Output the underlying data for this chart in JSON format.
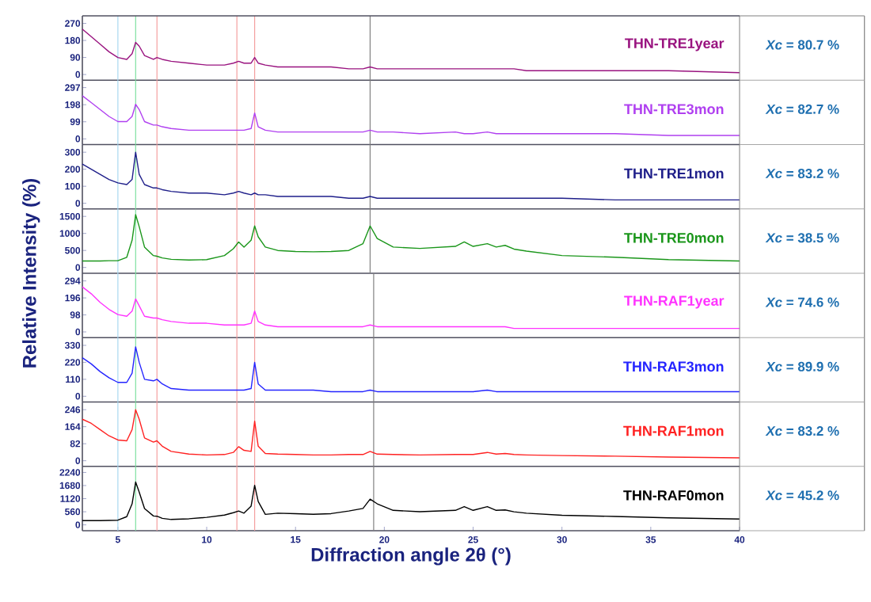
{
  "chart_data": [
    {
      "type": "line",
      "x": [
        3,
        3.5,
        4,
        4.5,
        5,
        5.5,
        5.8,
        6.0,
        6.2,
        6.5,
        7.0,
        7.2,
        7.5,
        8,
        9,
        10,
        11,
        11.5,
        11.8,
        12.1,
        12.5,
        12.7,
        12.9,
        13.3,
        14,
        15,
        16,
        17,
        18,
        18.8,
        19.2,
        19.6,
        20.5,
        22,
        24,
        24.5,
        25,
        25.8,
        26.3,
        26.8,
        27.3,
        28,
        30,
        33,
        36,
        40
      ],
      "xlim": [
        3,
        40
      ],
      "ylim": [
        -30,
        310
      ],
      "yticks": [
        0,
        90,
        180,
        270
      ],
      "tick_labels": "y",
      "series": [
        {
          "name": "THN-TRE1year",
          "color": "#99137f",
          "values": [
            240,
            200,
            160,
            120,
            90,
            80,
            110,
            170,
            150,
            100,
            80,
            90,
            80,
            70,
            60,
            50,
            50,
            60,
            70,
            60,
            60,
            90,
            60,
            50,
            40,
            40,
            40,
            40,
            30,
            30,
            40,
            30,
            30,
            30,
            30,
            30,
            30,
            30,
            30,
            30,
            30,
            20,
            20,
            20,
            20,
            10
          ]
        }
      ],
      "ref_lines": [
        {
          "axis": "x",
          "value": 5,
          "color": "#a8d8f0"
        },
        {
          "axis": "x",
          "value": 6,
          "color": "#7ee0a0"
        },
        {
          "axis": "x",
          "value": 7.2,
          "color": "#f4a0a0"
        },
        {
          "axis": "x",
          "value": 11.7,
          "color": "#f4a0a0"
        },
        {
          "axis": "x",
          "value": 12.7,
          "color": "#f4a0a0"
        },
        {
          "axis": "x",
          "value": 19.2,
          "color": "#808080"
        }
      ],
      "annotations": [
        "*Xc* = 80.7 %"
      ]
    },
    {
      "type": "line",
      "x": [
        3,
        3.5,
        4,
        4.5,
        5,
        5.5,
        5.8,
        6.0,
        6.2,
        6.5,
        7.0,
        7.2,
        7.5,
        8,
        9,
        10,
        11,
        11.5,
        11.8,
        12.1,
        12.5,
        12.7,
        12.9,
        13.3,
        14,
        15,
        16,
        17,
        18,
        18.8,
        19.2,
        19.6,
        20.5,
        22,
        24,
        24.5,
        25,
        25.8,
        26.3,
        26.8,
        27.3,
        28,
        30,
        33,
        36,
        40
      ],
      "xlim": [
        3,
        40
      ],
      "ylim": [
        -33,
        340
      ],
      "yticks": [
        0,
        99,
        198,
        297
      ],
      "tick_labels": "y",
      "series": [
        {
          "name": "THN-TRE3mon",
          "color": "#b040f0",
          "values": [
            250,
            210,
            170,
            130,
            100,
            100,
            130,
            200,
            170,
            100,
            80,
            80,
            70,
            60,
            50,
            50,
            50,
            50,
            50,
            50,
            60,
            150,
            70,
            50,
            40,
            40,
            40,
            40,
            40,
            40,
            50,
            40,
            40,
            30,
            40,
            30,
            30,
            40,
            30,
            30,
            30,
            30,
            30,
            30,
            20,
            20
          ]
        }
      ],
      "ref_lines": [
        {
          "axis": "x",
          "value": 5,
          "color": "#a8d8f0"
        },
        {
          "axis": "x",
          "value": 6,
          "color": "#7ee0a0"
        },
        {
          "axis": "x",
          "value": 7.2,
          "color": "#f4a0a0"
        },
        {
          "axis": "x",
          "value": 11.7,
          "color": "#f4a0a0"
        },
        {
          "axis": "x",
          "value": 12.7,
          "color": "#f4a0a0"
        },
        {
          "axis": "x",
          "value": 19.2,
          "color": "#808080"
        }
      ],
      "annotations": [
        "*Xc* = 82.7 %"
      ]
    },
    {
      "type": "line",
      "x": [
        3,
        3.5,
        4,
        4.5,
        5,
        5.5,
        5.8,
        6.0,
        6.2,
        6.5,
        7.0,
        7.2,
        7.5,
        8,
        9,
        10,
        11,
        11.5,
        11.8,
        12.1,
        12.5,
        12.7,
        12.9,
        13.3,
        14,
        15,
        16,
        17,
        18,
        18.8,
        19.2,
        19.6,
        20.5,
        22,
        24,
        24.5,
        25,
        25.8,
        26.3,
        26.8,
        27.3,
        28,
        30,
        33,
        36,
        40
      ],
      "xlim": [
        3,
        40
      ],
      "ylim": [
        -33,
        345
      ],
      "yticks": [
        0,
        100,
        200,
        300
      ],
      "tick_labels": "y",
      "series": [
        {
          "name": "THN-TRE1mon",
          "color": "#1f1f8a",
          "values": [
            230,
            200,
            170,
            140,
            120,
            110,
            140,
            300,
            170,
            110,
            90,
            90,
            80,
            70,
            60,
            60,
            50,
            60,
            70,
            60,
            50,
            60,
            50,
            50,
            40,
            40,
            40,
            40,
            30,
            30,
            40,
            30,
            30,
            30,
            30,
            30,
            30,
            30,
            30,
            30,
            30,
            30,
            30,
            20,
            20,
            20
          ]
        }
      ],
      "ref_lines": [
        {
          "axis": "x",
          "value": 5,
          "color": "#a8d8f0"
        },
        {
          "axis": "x",
          "value": 6,
          "color": "#7ee0a0"
        },
        {
          "axis": "x",
          "value": 7.2,
          "color": "#f4a0a0"
        },
        {
          "axis": "x",
          "value": 11.7,
          "color": "#f4a0a0"
        },
        {
          "axis": "x",
          "value": 12.7,
          "color": "#f4a0a0"
        },
        {
          "axis": "x",
          "value": 19.2,
          "color": "#808080"
        }
      ],
      "annotations": [
        "*Xc* = 83.2 %"
      ]
    },
    {
      "type": "line",
      "x": [
        3,
        3.5,
        4,
        4.5,
        5,
        5.5,
        5.8,
        6.0,
        6.2,
        6.5,
        7.0,
        7.2,
        7.5,
        8,
        9,
        10,
        11,
        11.5,
        11.8,
        12.1,
        12.5,
        12.7,
        12.9,
        13.3,
        14,
        15,
        16,
        17,
        18,
        18.8,
        19.2,
        19.6,
        20.5,
        22,
        24,
        24.5,
        25,
        25.8,
        26.3,
        26.8,
        27.3,
        28,
        30,
        33,
        36,
        40
      ],
      "xlim": [
        3,
        40
      ],
      "ylim": [
        -170,
        1720
      ],
      "yticks": [
        0,
        500,
        1000,
        1500
      ],
      "tick_labels": "y",
      "series": [
        {
          "name": "THN-TRE0mon",
          "color": "#1a961a",
          "values": [
            190,
            190,
            190,
            200,
            200,
            300,
            800,
            1550,
            1200,
            600,
            350,
            330,
            280,
            240,
            220,
            230,
            350,
            550,
            750,
            600,
            800,
            1220,
            900,
            600,
            500,
            470,
            460,
            470,
            500,
            700,
            1220,
            850,
            600,
            560,
            620,
            750,
            620,
            700,
            600,
            650,
            540,
            480,
            350,
            300,
            230,
            190
          ]
        }
      ],
      "ref_lines": [
        {
          "axis": "x",
          "value": 5,
          "color": "#a8d8f0"
        },
        {
          "axis": "x",
          "value": 6,
          "color": "#7ee0a0"
        },
        {
          "axis": "x",
          "value": 7.2,
          "color": "#f4a0a0"
        },
        {
          "axis": "x",
          "value": 11.7,
          "color": "#f4a0a0"
        },
        {
          "axis": "x",
          "value": 12.7,
          "color": "#f4a0a0"
        },
        {
          "axis": "x",
          "value": 19.2,
          "color": "#808080"
        }
      ],
      "annotations": [
        "*Xc* = 38.5 %"
      ]
    },
    {
      "type": "line",
      "x": [
        3,
        3.5,
        4,
        4.5,
        5,
        5.5,
        5.8,
        6.0,
        6.2,
        6.5,
        7.0,
        7.2,
        7.5,
        8,
        9,
        10,
        11,
        11.5,
        11.8,
        12.1,
        12.5,
        12.7,
        12.9,
        13.3,
        14,
        15,
        16,
        17,
        18,
        18.8,
        19.2,
        19.6,
        20.5,
        22,
        24,
        24.5,
        25,
        25.8,
        26.3,
        26.8,
        27.3,
        28,
        30,
        33,
        36,
        40
      ],
      "xlim": [
        3,
        40
      ],
      "ylim": [
        -33,
        338
      ],
      "yticks": [
        0,
        98,
        196,
        294
      ],
      "tick_labels": "y",
      "series": [
        {
          "name": "THN-RAF1year",
          "color": "#ff33ff",
          "values": [
            260,
            220,
            170,
            130,
            100,
            90,
            120,
            190,
            150,
            90,
            80,
            80,
            70,
            60,
            50,
            50,
            40,
            40,
            40,
            40,
            50,
            120,
            60,
            40,
            30,
            30,
            30,
            30,
            30,
            30,
            40,
            30,
            30,
            30,
            30,
            30,
            30,
            30,
            30,
            30,
            20,
            20,
            20,
            20,
            20,
            20
          ]
        }
      ],
      "ref_lines": [
        {
          "axis": "x",
          "value": 5,
          "color": "#a8d8f0"
        },
        {
          "axis": "x",
          "value": 6,
          "color": "#7ee0a0"
        },
        {
          "axis": "x",
          "value": 7.2,
          "color": "#f4a0a0"
        },
        {
          "axis": "x",
          "value": 11.7,
          "color": "#f4a0a0"
        },
        {
          "axis": "x",
          "value": 12.7,
          "color": "#f4a0a0"
        },
        {
          "axis": "x",
          "value": 19.4,
          "color": "#808080"
        }
      ],
      "annotations": [
        "*Xc* = 74.6 %"
      ]
    },
    {
      "type": "line",
      "x": [
        3,
        3.5,
        4,
        4.5,
        5,
        5.5,
        5.8,
        6.0,
        6.2,
        6.5,
        7.0,
        7.2,
        7.5,
        8,
        9,
        10,
        11,
        11.5,
        11.8,
        12.1,
        12.5,
        12.7,
        12.9,
        13.3,
        14,
        15,
        16,
        17,
        18,
        18.8,
        19.2,
        19.6,
        20.5,
        22,
        24,
        24.5,
        25,
        25.8,
        26.3,
        26.8,
        27.3,
        28,
        30,
        33,
        36,
        40
      ],
      "xlim": [
        3,
        40
      ],
      "ylim": [
        -37,
        380
      ],
      "yticks": [
        0,
        110,
        220,
        330
      ],
      "tick_labels": "y",
      "series": [
        {
          "name": "THN-RAF3mon",
          "color": "#2424ff",
          "values": [
            250,
            210,
            160,
            120,
            90,
            90,
            150,
            320,
            220,
            110,
            100,
            110,
            80,
            50,
            40,
            40,
            40,
            40,
            40,
            40,
            50,
            220,
            80,
            40,
            40,
            40,
            40,
            30,
            30,
            30,
            40,
            30,
            30,
            30,
            30,
            30,
            30,
            40,
            30,
            30,
            30,
            30,
            30,
            30,
            30,
            30
          ]
        }
      ],
      "ref_lines": [
        {
          "axis": "x",
          "value": 5,
          "color": "#a8d8f0"
        },
        {
          "axis": "x",
          "value": 6,
          "color": "#7ee0a0"
        },
        {
          "axis": "x",
          "value": 7.2,
          "color": "#f4a0a0"
        },
        {
          "axis": "x",
          "value": 11.7,
          "color": "#f4a0a0"
        },
        {
          "axis": "x",
          "value": 12.7,
          "color": "#f4a0a0"
        },
        {
          "axis": "x",
          "value": 19.4,
          "color": "#808080"
        }
      ],
      "annotations": [
        "*Xc* = 89.9 %"
      ]
    },
    {
      "type": "line",
      "x": [
        3,
        3.5,
        4,
        4.5,
        5,
        5.5,
        5.8,
        6.0,
        6.2,
        6.5,
        7.0,
        7.2,
        7.5,
        8,
        9,
        10,
        11,
        11.5,
        11.8,
        12.1,
        12.5,
        12.7,
        12.9,
        13.3,
        14,
        15,
        16,
        17,
        18,
        18.8,
        19.2,
        19.6,
        20.5,
        22,
        24,
        24.5,
        25,
        25.8,
        26.3,
        26.8,
        27.3,
        28,
        30,
        33,
        36,
        40
      ],
      "xlim": [
        3,
        40
      ],
      "ylim": [
        -27,
        283
      ],
      "yticks": [
        0,
        82,
        164,
        246
      ],
      "tick_labels": "y",
      "series": [
        {
          "name": "THN-RAF1mon",
          "color": "#ff2222",
          "values": [
            200,
            180,
            150,
            120,
            100,
            96,
            150,
            246,
            200,
            110,
            90,
            96,
            70,
            45,
            32,
            28,
            30,
            40,
            68,
            50,
            45,
            191,
            70,
            35,
            32,
            30,
            28,
            28,
            30,
            30,
            45,
            32,
            30,
            28,
            30,
            30,
            30,
            40,
            32,
            35,
            30,
            28,
            25,
            22,
            18,
            14
          ]
        }
      ],
      "ref_lines": [
        {
          "axis": "x",
          "value": 5,
          "color": "#a8d8f0"
        },
        {
          "axis": "x",
          "value": 6,
          "color": "#7ee0a0"
        },
        {
          "axis": "x",
          "value": 7.2,
          "color": "#f4a0a0"
        },
        {
          "axis": "x",
          "value": 11.7,
          "color": "#f4a0a0"
        },
        {
          "axis": "x",
          "value": 12.7,
          "color": "#f4a0a0"
        },
        {
          "axis": "x",
          "value": 19.4,
          "color": "#808080"
        }
      ],
      "annotations": [
        "*Xc* = 83.2 %"
      ]
    },
    {
      "type": "line",
      "x": [
        3,
        3.5,
        4,
        4.5,
        5,
        5.5,
        5.8,
        6.0,
        6.2,
        6.5,
        7.0,
        7.2,
        7.5,
        8,
        9,
        10,
        11,
        11.5,
        11.8,
        12.1,
        12.5,
        12.7,
        12.9,
        13.3,
        14,
        15,
        16,
        17,
        18,
        18.8,
        19.2,
        19.6,
        20.5,
        22,
        24,
        24.5,
        25,
        25.8,
        26.3,
        26.8,
        27.3,
        28,
        30,
        33,
        36,
        40
      ],
      "xlim": [
        3,
        40
      ],
      "ylim": [
        -250,
        2500
      ],
      "yticks": [
        0,
        560,
        1120,
        1680,
        2240
      ],
      "xticks": [
        5,
        10,
        15,
        20,
        25,
        30,
        35,
        40
      ],
      "xlabel": "Diffraction angle 2θ (°)",
      "ylabel": "Relative Intensity (%)",
      "series": [
        {
          "name": "THN-RAF0mon",
          "color": "#000000",
          "values": [
            180,
            180,
            180,
            190,
            200,
            350,
            900,
            1830,
            1400,
            700,
            380,
            370,
            280,
            230,
            260,
            320,
            420,
            520,
            590,
            500,
            800,
            1690,
            1000,
            450,
            500,
            480,
            450,
            480,
            590,
            700,
            1100,
            900,
            620,
            560,
            620,
            780,
            620,
            780,
            620,
            640,
            560,
            500,
            410,
            360,
            300,
            250
          ]
        }
      ],
      "ref_lines": [
        {
          "axis": "x",
          "value": 5,
          "color": "#a8d8f0"
        },
        {
          "axis": "x",
          "value": 6,
          "color": "#7ee0a0"
        },
        {
          "axis": "x",
          "value": 7.2,
          "color": "#f4a0a0"
        },
        {
          "axis": "x",
          "value": 11.7,
          "color": "#f4a0a0"
        },
        {
          "axis": "x",
          "value": 12.7,
          "color": "#f4a0a0"
        },
        {
          "axis": "x",
          "value": 19.4,
          "color": "#808080"
        }
      ],
      "annotations": [
        "*Xc* = 45.2 %"
      ]
    }
  ]
}
